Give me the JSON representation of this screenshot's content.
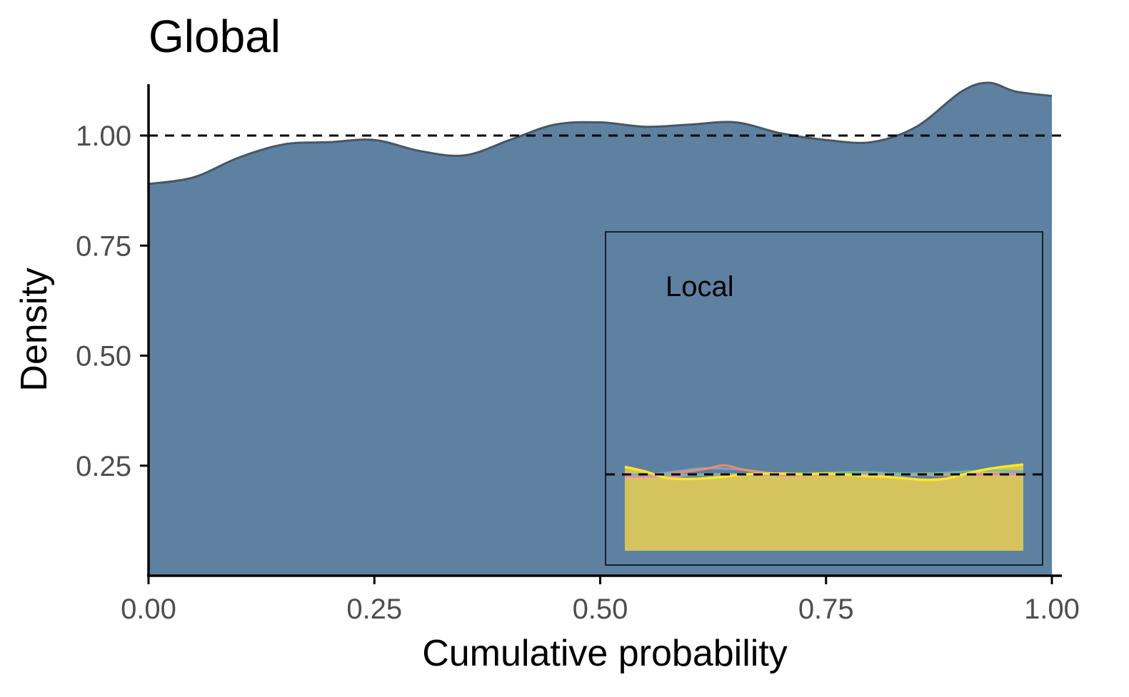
{
  "chart_data": [
    {
      "type": "area",
      "title": "Global",
      "xlabel": "Cumulative probability",
      "ylabel": "Density",
      "xlim": [
        0,
        1
      ],
      "ylim": [
        0,
        1.12
      ],
      "x_ticks": [
        "0.00",
        "0.25",
        "0.50",
        "0.75",
        "1.00"
      ],
      "x_tick_values": [
        0,
        0.25,
        0.5,
        0.75,
        1.0
      ],
      "y_ticks": [
        "0.25",
        "0.50",
        "0.75",
        "1.00"
      ],
      "y_tick_values": [
        0.25,
        0.5,
        0.75,
        1.0
      ],
      "reference_line": 1.0,
      "grid": false,
      "fill_color": "#5e81a2",
      "line_color": "#4a5563",
      "series": [
        {
          "x": [
            0.0,
            0.05,
            0.1,
            0.15,
            0.2,
            0.25,
            0.3,
            0.35,
            0.4,
            0.45,
            0.5,
            0.55,
            0.6,
            0.65,
            0.7,
            0.75,
            0.8,
            0.85,
            0.9,
            0.93,
            0.96,
            1.0
          ],
          "values": [
            0.89,
            0.905,
            0.95,
            0.98,
            0.985,
            0.99,
            0.965,
            0.955,
            0.99,
            1.025,
            1.03,
            1.02,
            1.025,
            1.03,
            1.005,
            0.99,
            0.985,
            1.02,
            1.1,
            1.12,
            1.1,
            1.09
          ]
        }
      ]
    },
    {
      "type": "area",
      "title": "Local",
      "xlim": [
        0,
        1
      ],
      "ylim": [
        0,
        1.12
      ],
      "reference_line": 1.0,
      "series": [
        {
          "color": "#fde725",
          "x": [
            0.0,
            0.05,
            0.1,
            0.15,
            0.2,
            0.25,
            0.3,
            0.35,
            0.4,
            0.45,
            0.5,
            0.55,
            0.6,
            0.65,
            0.7,
            0.75,
            0.8,
            0.85,
            0.9,
            0.95,
            1.0
          ],
          "values": [
            1.1,
            1.04,
            0.96,
            0.94,
            0.95,
            0.97,
            1.0,
            1.01,
            1.01,
            1.0,
            1.01,
            1.0,
            0.98,
            0.97,
            0.95,
            0.93,
            0.94,
            1.0,
            1.06,
            1.1,
            1.13
          ]
        },
        {
          "color": "#8da0cb",
          "x": [
            0.0,
            0.1,
            0.2,
            0.3,
            0.4,
            0.5,
            0.6,
            0.7,
            0.8,
            0.9,
            1.0
          ],
          "values": [
            0.98,
            1.02,
            1.08,
            1.06,
            1.0,
            1.0,
            1.01,
            0.99,
            1.0,
            1.0,
            1.03
          ]
        },
        {
          "color": "#fc8d62",
          "x": [
            0.0,
            0.1,
            0.2,
            0.25,
            0.3,
            0.4,
            0.5,
            0.6,
            0.7,
            0.8,
            0.9,
            1.0
          ],
          "values": [
            0.99,
            1.0,
            1.07,
            1.12,
            1.06,
            0.99,
            1.0,
            1.01,
            1.0,
            0.99,
            1.0,
            1.01
          ]
        },
        {
          "color": "#e78ac3",
          "x": [
            0.0,
            0.1,
            0.2,
            0.3,
            0.4,
            0.5,
            0.6,
            0.7,
            0.8,
            0.9,
            1.0
          ],
          "values": [
            0.97,
            0.97,
            1.0,
            1.0,
            0.99,
            1.0,
            1.0,
            1.0,
            1.0,
            1.0,
            1.0
          ]
        },
        {
          "color": "#66c2a5",
          "x": [
            0.0,
            0.1,
            0.2,
            0.3,
            0.4,
            0.5,
            0.6,
            0.7,
            0.8,
            0.9,
            1.0
          ],
          "values": [
            1.0,
            1.0,
            0.99,
            1.0,
            1.01,
            1.02,
            1.03,
            1.01,
            1.02,
            1.05,
            1.04
          ]
        }
      ],
      "fill_color": "#dbc75a"
    }
  ]
}
